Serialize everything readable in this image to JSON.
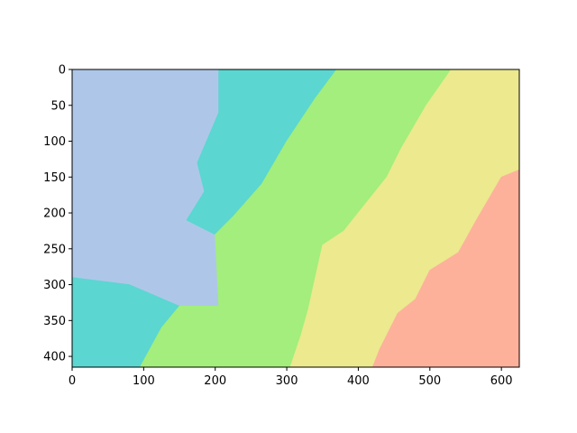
{
  "chart_data": {
    "type": "heatmap",
    "title": "",
    "xlabel": "",
    "ylabel": "",
    "xlim": [
      0,
      625
    ],
    "ylim": [
      415,
      0
    ],
    "y_axis_inverted": true,
    "x_ticks": [
      0,
      100,
      200,
      300,
      400,
      500,
      600
    ],
    "y_ticks": [
      0,
      50,
      100,
      150,
      200,
      250,
      300,
      350,
      400
    ],
    "grid": false,
    "legend": "none",
    "regions": [
      {
        "name": "",
        "color": "#aec7e8",
        "polygon": [
          [
            0,
            0
          ],
          [
            205,
            0
          ],
          [
            205,
            60
          ],
          [
            175,
            130
          ],
          [
            185,
            170
          ],
          [
            160,
            210
          ],
          [
            200,
            230
          ],
          [
            205,
            330
          ],
          [
            150,
            330
          ],
          [
            80,
            300
          ],
          [
            0,
            290
          ]
        ]
      },
      {
        "name": "",
        "color": "#5bd6d1",
        "polygon": [
          [
            205,
            0
          ],
          [
            370,
            0
          ],
          [
            340,
            40
          ],
          [
            300,
            100
          ],
          [
            265,
            160
          ],
          [
            225,
            205
          ],
          [
            200,
            230
          ],
          [
            160,
            210
          ],
          [
            185,
            170
          ],
          [
            175,
            130
          ],
          [
            205,
            60
          ]
        ]
      },
      {
        "name": "",
        "color": "#5bd6d1",
        "polygon": [
          [
            0,
            290
          ],
          [
            80,
            300
          ],
          [
            150,
            330
          ],
          [
            125,
            360
          ],
          [
            95,
            415
          ],
          [
            0,
            415
          ]
        ]
      },
      {
        "name": "",
        "color": "#a3ee7c",
        "polygon": [
          [
            370,
            0
          ],
          [
            530,
            0
          ],
          [
            495,
            50
          ],
          [
            460,
            110
          ],
          [
            440,
            150
          ],
          [
            400,
            200
          ],
          [
            380,
            225
          ],
          [
            350,
            245
          ],
          [
            340,
            290
          ],
          [
            330,
            335
          ],
          [
            320,
            370
          ],
          [
            305,
            415
          ],
          [
            95,
            415
          ],
          [
            125,
            360
          ],
          [
            150,
            330
          ],
          [
            205,
            330
          ],
          [
            200,
            230
          ],
          [
            225,
            205
          ],
          [
            265,
            160
          ],
          [
            300,
            100
          ],
          [
            340,
            40
          ]
        ]
      },
      {
        "name": "",
        "color": "#ece98e",
        "polygon": [
          [
            530,
            0
          ],
          [
            625,
            0
          ],
          [
            625,
            140
          ],
          [
            600,
            150
          ],
          [
            565,
            210
          ],
          [
            540,
            255
          ],
          [
            500,
            280
          ],
          [
            480,
            320
          ],
          [
            455,
            340
          ],
          [
            430,
            390
          ],
          [
            420,
            415
          ],
          [
            305,
            415
          ],
          [
            320,
            370
          ],
          [
            330,
            335
          ],
          [
            340,
            290
          ],
          [
            350,
            245
          ],
          [
            380,
            225
          ],
          [
            400,
            200
          ],
          [
            440,
            150
          ],
          [
            460,
            110
          ],
          [
            495,
            50
          ]
        ]
      },
      {
        "name": "",
        "color": "#fdb19b",
        "polygon": [
          [
            625,
            140
          ],
          [
            625,
            415
          ],
          [
            420,
            415
          ],
          [
            430,
            390
          ],
          [
            455,
            340
          ],
          [
            480,
            320
          ],
          [
            500,
            280
          ],
          [
            540,
            255
          ],
          [
            565,
            210
          ],
          [
            600,
            150
          ]
        ]
      }
    ]
  }
}
